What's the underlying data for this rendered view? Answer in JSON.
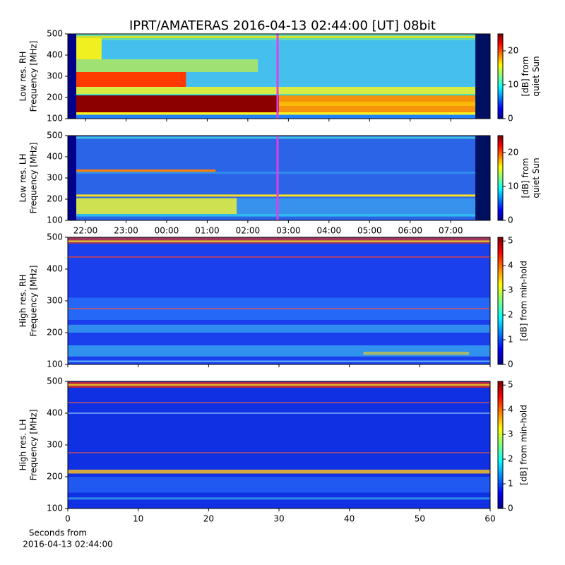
{
  "chart_data": [
    {
      "type": "heatmap",
      "title": "IPRT/AMATERAS 2016-04-13 02:44:00 [UT]   08bit",
      "ylabel": [
        "Low res. RH",
        "Frequency [MHz]"
      ],
      "ylim": [
        100,
        500
      ],
      "yticks": [
        100,
        200,
        300,
        400,
        500
      ],
      "xlim": [
        21.565,
        31.97
      ],
      "marker_x": 26.733,
      "marker_color": "#e040e0",
      "colorbar_label": [
        "[dB] from",
        "quiet Sun"
      ],
      "clim": [
        0,
        25
      ],
      "cticks": [
        0,
        10,
        20
      ]
    },
    {
      "type": "heatmap",
      "ylabel": [
        "Low res. LH",
        "Frequency [MHz]"
      ],
      "ylim": [
        100,
        500
      ],
      "yticks": [
        100,
        200,
        300,
        400,
        500
      ],
      "xlim": [
        21.565,
        31.97
      ],
      "marker_x": 26.733,
      "marker_color": "#e040e0",
      "xticks": [
        {
          "value": 22,
          "label": "22:00"
        },
        {
          "value": 23,
          "label": "23:00"
        },
        {
          "value": 24,
          "label": "00:00"
        },
        {
          "value": 25,
          "label": "01:00"
        },
        {
          "value": 26,
          "label": "02:00"
        },
        {
          "value": 27,
          "label": "03:00"
        },
        {
          "value": 28,
          "label": "04:00"
        },
        {
          "value": 29,
          "label": "05:00"
        },
        {
          "value": 30,
          "label": "06:00"
        },
        {
          "value": 31,
          "label": "07:00"
        }
      ],
      "colorbar_label": [
        "[dB] from",
        "quiet Sun"
      ],
      "clim": [
        0,
        25
      ],
      "cticks": [
        0,
        10,
        20
      ]
    },
    {
      "type": "heatmap",
      "ylabel": [
        "High res. RH",
        "Frequency [MHz]"
      ],
      "ylim": [
        100,
        500
      ],
      "yticks": [
        100,
        200,
        300,
        400,
        500
      ],
      "xlim": [
        0,
        60
      ],
      "xticks": [
        0,
        10,
        20,
        30,
        40,
        50,
        60
      ],
      "colorbar_label": [
        "[dB] from min-hold"
      ],
      "clim": [
        0,
        5.15
      ],
      "cticks": [
        0,
        1,
        2,
        3,
        4,
        5
      ]
    },
    {
      "type": "heatmap",
      "ylabel": [
        "High res. LH",
        "Frequency [MHz]"
      ],
      "ylim": [
        100,
        500
      ],
      "yticks": [
        100,
        200,
        300,
        400,
        500
      ],
      "xlim": [
        0,
        60
      ],
      "xticks": [
        0,
        10,
        20,
        30,
        40,
        50,
        60
      ],
      "xlabel": [
        "Seconds from",
        "2016-04-13 02:44:00"
      ],
      "colorbar_label": [
        "[dB] from min-hold"
      ],
      "clim": [
        0,
        5.15
      ],
      "cticks": [
        0,
        1,
        2,
        3,
        4,
        5
      ]
    }
  ]
}
